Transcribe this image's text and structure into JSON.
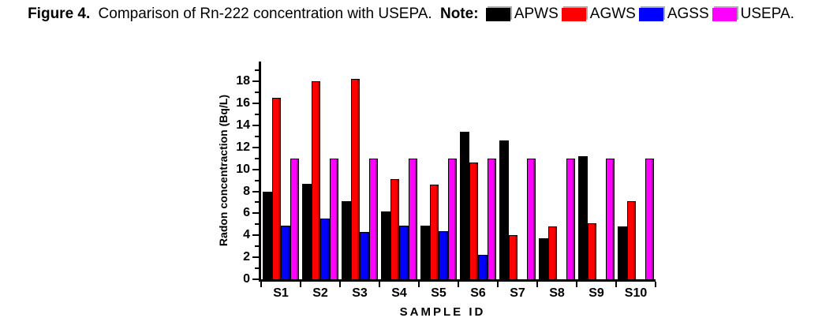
{
  "caption": {
    "figure_label": "Figure 4.",
    "text": "Comparison of Rn-222 concentration with USEPA.",
    "note_label": "Note:"
  },
  "legend": [
    {
      "label": "APWS",
      "color": "#000000"
    },
    {
      "label": "AGWS",
      "color": "#ff0000"
    },
    {
      "label": "AGSS",
      "color": "#0000ff"
    },
    {
      "label": "USEPA.",
      "color": "#ff00ff"
    }
  ],
  "chart_data": {
    "type": "bar",
    "title": "",
    "xlabel": "SAMPLE ID",
    "ylabel": "Radon concentraction (Bq/L)",
    "categories": [
      "S1",
      "S2",
      "S3",
      "S4",
      "S5",
      "S6",
      "S7",
      "S8",
      "S9",
      "S10"
    ],
    "series": [
      {
        "name": "APWS",
        "color": "#000000",
        "values": [
          8.0,
          8.7,
          7.1,
          6.2,
          4.9,
          13.4,
          12.6,
          3.7,
          11.2,
          4.8
        ]
      },
      {
        "name": "AGWS",
        "color": "#ff0000",
        "values": [
          16.5,
          18.0,
          18.2,
          9.1,
          8.6,
          10.6,
          4.0,
          4.8,
          5.1,
          7.1
        ]
      },
      {
        "name": "AGSS",
        "color": "#0000ff",
        "values": [
          4.9,
          5.5,
          4.3,
          4.9,
          4.4,
          2.2,
          0,
          0,
          0,
          0
        ]
      },
      {
        "name": "USEPA",
        "color": "#ff00ff",
        "values": [
          11,
          11,
          11,
          11,
          11,
          11,
          11,
          11,
          11,
          11
        ]
      }
    ],
    "ylim": [
      0,
      19.8
    ],
    "yticks": [
      0,
      2,
      4,
      6,
      8,
      10,
      12,
      14,
      16,
      18
    ],
    "minor_yticks_step": 1,
    "grid": false,
    "legend_position": "caption-top"
  }
}
